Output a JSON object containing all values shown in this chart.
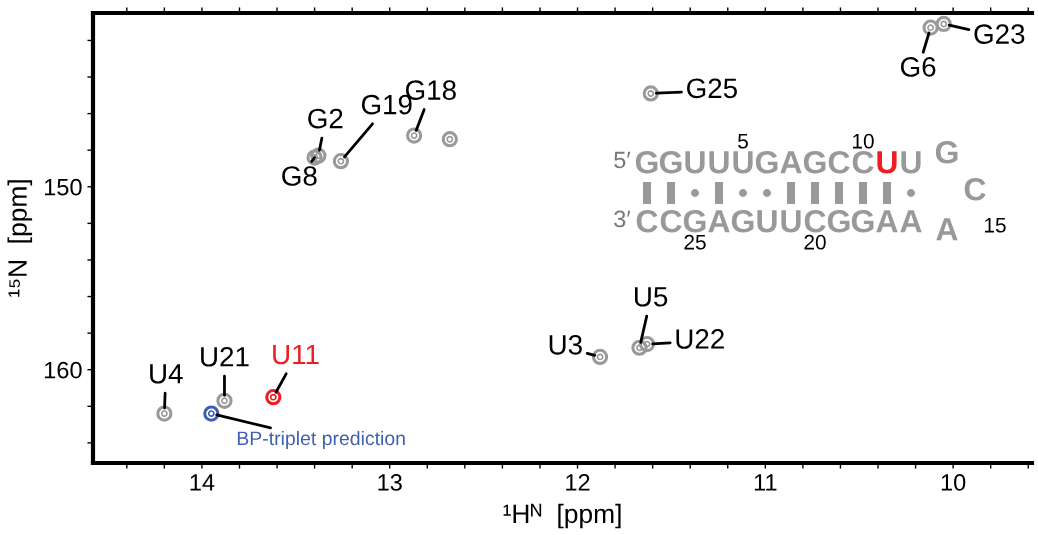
{
  "chart_data": {
    "type": "scatter",
    "xlabel": "¹Hᴺ  [ppm]",
    "ylabel": "¹⁵N  [ppm]",
    "xlim": [
      14.58,
      9.58
    ],
    "ylim": [
      165.1,
      140.5
    ],
    "xticks": [
      {
        "value": 14.4,
        "label": null
      },
      {
        "value": 14.2,
        "label": null
      },
      14,
      {
        "value": 13.8,
        "label": null
      },
      {
        "value": 13.6,
        "label": null
      },
      {
        "value": 13.4,
        "label": null
      },
      {
        "value": 13.2,
        "label": null
      },
      13,
      {
        "value": 12.8,
        "label": null
      },
      {
        "value": 12.6,
        "label": null
      },
      {
        "value": 12.4,
        "label": null
      },
      {
        "value": 12.2,
        "label": null
      },
      12,
      {
        "value": 11.8,
        "label": null
      },
      {
        "value": 11.6,
        "label": null
      },
      {
        "value": 11.4,
        "label": null
      },
      {
        "value": 11.2,
        "label": null
      },
      11,
      {
        "value": 10.8,
        "label": null
      },
      {
        "value": 10.6,
        "label": null
      },
      {
        "value": 10.4,
        "label": null
      },
      {
        "value": 10.2,
        "label": null
      },
      10,
      {
        "value": 9.8,
        "label": null
      },
      {
        "value": 9.6,
        "label": null
      }
    ],
    "yticks": [
      {
        "value": 142,
        "label": null
      },
      {
        "value": 144,
        "label": null
      },
      {
        "value": 146,
        "label": null
      },
      {
        "value": 148,
        "label": null
      },
      150,
      {
        "value": 152,
        "label": null
      },
      {
        "value": 154,
        "label": null
      },
      {
        "value": 156,
        "label": null
      },
      {
        "value": 158,
        "label": null
      },
      160,
      {
        "value": 162,
        "label": null
      },
      {
        "value": 164,
        "label": null
      }
    ],
    "grid": false,
    "marker": "circle",
    "series": [
      {
        "color": "#999999",
        "x": [
          10.12,
          10.05,
          11.61,
          13.38,
          13.4,
          13.26,
          12.87,
          12.68,
          11.88,
          11.67,
          11.63,
          14.2,
          13.88
        ],
        "values": [
          141.3,
          141.1,
          144.9,
          148.3,
          148.4,
          148.6,
          147.2,
          147.4,
          159.3,
          158.8,
          158.6,
          162.4,
          161.7
        ]
      },
      {
        "name": "U11",
        "color": "#ee1c24",
        "x": [
          13.62
        ],
        "values": [
          161.5
        ]
      },
      {
        "name": "BP-triplet prediction",
        "color": "#3f5fb0",
        "x": [
          13.95
        ],
        "values": [
          162.4
        ]
      }
    ],
    "annotations": [
      {
        "text": "G6",
        "x": 10.12,
        "y": 141.3
      },
      {
        "text": "G23",
        "x": 10.05,
        "y": 141.1
      },
      {
        "text": "G25",
        "x": 11.61,
        "y": 144.9
      },
      {
        "text": "G2",
        "x": 13.38,
        "y": 148.3
      },
      {
        "text": "G8",
        "x": 13.4,
        "y": 148.4
      },
      {
        "text": "G19",
        "x": 13.26,
        "y": 148.6
      },
      {
        "text": "G18",
        "x": 12.87,
        "y": 147.2
      },
      {
        "text": "U3",
        "x": 11.88,
        "y": 159.3
      },
      {
        "text": "U5",
        "x": 11.67,
        "y": 158.8
      },
      {
        "text": "U22",
        "x": 11.63,
        "y": 158.6
      },
      {
        "text": "U4",
        "x": 14.2,
        "y": 162.4
      },
      {
        "text": "U21",
        "x": 13.88,
        "y": 161.7
      },
      "5′",
      "GGUUUGAGCC",
      "U",
      "U",
      "GCA",
      "3′",
      "CCGAGUUCGGAA",
      "5",
      "10",
      "15",
      "20",
      "25"
    ]
  }
}
